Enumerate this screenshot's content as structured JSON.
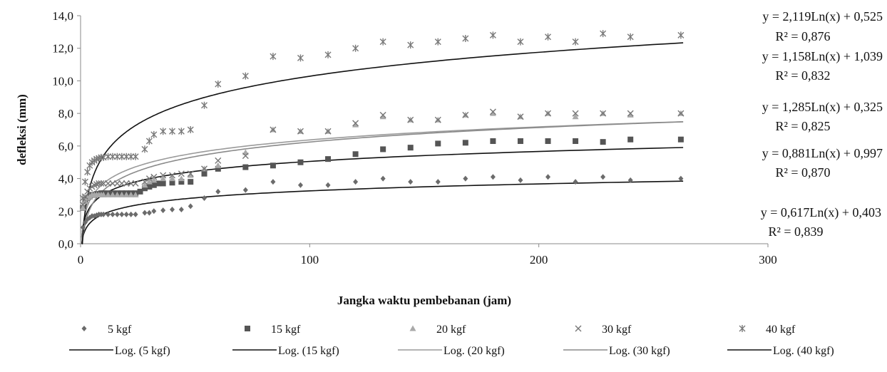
{
  "chart_data": {
    "type": "scatter",
    "xlabel": "Jangka waktu pembebanan (jam)",
    "ylabel": "defleksi (mm)",
    "xlim": [
      0,
      300
    ],
    "ylim": [
      0,
      14
    ],
    "x_ticks": [
      "0",
      "100",
      "200",
      "300"
    ],
    "y_ticks": [
      "0,0",
      "2,0",
      "4,0",
      "6,0",
      "8,0",
      "10,0",
      "12,0",
      "14,0"
    ],
    "grid": false,
    "legend_position": "bottom",
    "series": [
      {
        "name": "5 kgf",
        "marker": "diamond",
        "color": "#6b6b6b",
        "x": [
          1,
          2,
          3,
          4,
          5,
          6,
          7,
          8,
          9,
          10,
          12,
          14,
          16,
          18,
          20,
          22,
          24,
          28,
          30,
          32,
          36,
          40,
          44,
          48,
          54,
          60,
          72,
          84,
          96,
          108,
          120,
          132,
          144,
          156,
          168,
          180,
          192,
          204,
          216,
          228,
          240,
          262
        ],
        "y": [
          1.0,
          1.3,
          1.5,
          1.6,
          1.7,
          1.7,
          1.75,
          1.8,
          1.8,
          1.8,
          1.8,
          1.8,
          1.8,
          1.8,
          1.8,
          1.8,
          1.8,
          1.9,
          1.9,
          2.0,
          2.05,
          2.1,
          2.1,
          2.3,
          2.8,
          3.2,
          3.3,
          3.8,
          3.6,
          3.6,
          3.8,
          4.0,
          3.8,
          3.8,
          4.0,
          4.1,
          3.9,
          4.1,
          3.8,
          4.1,
          3.9,
          4.0
        ],
        "trend": {
          "name": "Log. (5 kgf)",
          "a": 0.617,
          "b": 0.403,
          "r2": "0,839",
          "equation": "y = 0,617Ln(x) + 0,403",
          "r2_label": "R² = 0,839",
          "color": "#111111"
        }
      },
      {
        "name": "15 kgf",
        "marker": "square",
        "color": "#555555",
        "x": [
          1,
          2,
          3,
          4,
          5,
          6,
          7,
          8,
          9,
          10,
          12,
          14,
          16,
          18,
          20,
          22,
          24,
          26,
          28,
          30,
          32,
          34,
          36,
          40,
          44,
          48,
          54,
          60,
          72,
          84,
          96,
          108,
          120,
          132,
          144,
          156,
          168,
          180,
          192,
          204,
          216,
          228,
          240,
          262
        ],
        "y": [
          2.2,
          2.6,
          2.8,
          2.9,
          3.0,
          3.0,
          3.05,
          3.05,
          3.1,
          3.1,
          3.1,
          3.1,
          3.1,
          3.1,
          3.1,
          3.1,
          3.1,
          3.2,
          3.4,
          3.5,
          3.6,
          3.7,
          3.7,
          3.75,
          3.8,
          3.8,
          4.3,
          4.6,
          4.7,
          4.8,
          5.0,
          5.2,
          5.5,
          5.8,
          5.9,
          6.15,
          6.2,
          6.3,
          6.3,
          6.3,
          6.3,
          6.25,
          6.4,
          6.4
        ],
        "trend": {
          "name": "Log. (15 kgf)",
          "a": 0.881,
          "b": 0.997,
          "r2": "0,870",
          "equation": "y = 0,881Ln(x) + 0,997",
          "r2_label": "R² = 0,870",
          "color": "#111111"
        }
      },
      {
        "name": "20 kgf",
        "marker": "triangle",
        "color": "#a9a9a9",
        "x": [
          1,
          2,
          3,
          4,
          5,
          6,
          7,
          8,
          9,
          10,
          12,
          14,
          16,
          18,
          20,
          22,
          24,
          28,
          30,
          32,
          36,
          40,
          44,
          48,
          54,
          60,
          72,
          84,
          96,
          108,
          120,
          132,
          144,
          156,
          168,
          180,
          192,
          204,
          216,
          228,
          240,
          262
        ],
        "y": [
          2.2,
          2.6,
          2.8,
          2.9,
          3.0,
          3.0,
          3.0,
          3.0,
          3.0,
          3.0,
          3.0,
          3.0,
          3.0,
          3.0,
          3.0,
          3.0,
          3.0,
          3.6,
          3.8,
          3.9,
          4.0,
          4.0,
          4.0,
          4.2,
          4.6,
          4.8,
          5.6,
          7.0,
          6.9,
          6.9,
          7.3,
          7.8,
          7.6,
          7.6,
          7.9,
          8.0,
          7.8,
          8.0,
          7.8,
          8.0,
          7.9,
          8.0
        ],
        "trend": {
          "name": "Log. (20 kgf)",
          "a": 1.158,
          "b": 1.039,
          "r2": "0,832",
          "equation": "y = 1,158Ln(x) + 1,039",
          "r2_label": "R² = 0,832",
          "color": "#9a9a9a"
        }
      },
      {
        "name": "30 kgf",
        "marker": "x",
        "color": "#777777",
        "x": [
          1,
          2,
          3,
          4,
          5,
          6,
          7,
          8,
          9,
          10,
          12,
          14,
          16,
          18,
          20,
          22,
          24,
          28,
          30,
          32,
          36,
          40,
          44,
          48,
          54,
          60,
          72,
          84,
          96,
          108,
          120,
          132,
          144,
          156,
          168,
          180,
          192,
          204,
          216,
          228,
          240,
          262
        ],
        "y": [
          2.4,
          2.9,
          3.2,
          3.4,
          3.5,
          3.6,
          3.65,
          3.7,
          3.7,
          3.7,
          3.7,
          3.7,
          3.7,
          3.7,
          3.7,
          3.7,
          3.7,
          3.8,
          4.0,
          4.1,
          4.2,
          4.2,
          4.3,
          4.3,
          4.6,
          5.1,
          5.4,
          7.0,
          6.9,
          6.9,
          7.4,
          7.9,
          7.6,
          7.6,
          7.9,
          8.1,
          7.8,
          8.0,
          8.0,
          8.0,
          8.0,
          8.0
        ],
        "trend": {
          "name": "Log. (30 kgf)",
          "a": 1.285,
          "b": 0.325,
          "r2": "0,825",
          "equation": "y = 1,285Ln(x) + 0,325",
          "r2_label": "R² = 0,825",
          "color": "#8a8a8a"
        }
      },
      {
        "name": "40 kgf",
        "marker": "asterisk",
        "color": "#7a7a7a",
        "x": [
          1,
          2,
          3,
          4,
          5,
          6,
          7,
          8,
          9,
          10,
          12,
          14,
          16,
          18,
          20,
          22,
          24,
          28,
          30,
          32,
          36,
          40,
          44,
          48,
          54,
          60,
          72,
          84,
          96,
          108,
          120,
          132,
          144,
          156,
          168,
          180,
          192,
          204,
          216,
          228,
          240,
          262
        ],
        "y": [
          2.8,
          3.8,
          4.4,
          4.8,
          5.0,
          5.1,
          5.2,
          5.25,
          5.3,
          5.3,
          5.35,
          5.35,
          5.35,
          5.35,
          5.35,
          5.35,
          5.35,
          5.8,
          6.3,
          6.7,
          6.9,
          6.9,
          6.9,
          7.0,
          8.5,
          9.8,
          10.3,
          11.5,
          11.4,
          11.6,
          12.0,
          12.4,
          12.2,
          12.4,
          12.6,
          12.8,
          12.4,
          12.7,
          12.4,
          12.9,
          12.7,
          12.8
        ],
        "trend": {
          "name": "Log. (40 kgf)",
          "a": 2.119,
          "b": 0.525,
          "r2": "0,876",
          "equation": "y = 2,119Ln(x) + 0,525",
          "r2_label": "R² = 0,876",
          "color": "#111111"
        }
      }
    ]
  }
}
